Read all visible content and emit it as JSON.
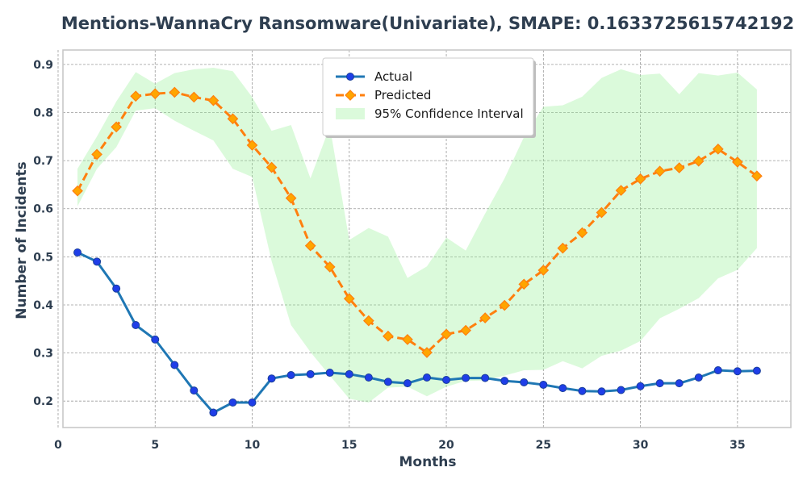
{
  "chart_data": {
    "type": "line",
    "title": "Mentions-WannaCry Ransomware(Univariate), SMAPE: 0.1633725615742192",
    "xlabel": "Months",
    "ylabel": "Number of Incidents",
    "xlim": [
      0.25,
      37.75
    ],
    "ylim": [
      0.145,
      0.93
    ],
    "xticks": [
      0,
      5,
      10,
      15,
      20,
      25,
      30,
      35
    ],
    "yticks": [
      0.2,
      0.3,
      0.4,
      0.5,
      0.6,
      0.7,
      0.8,
      0.9
    ],
    "grid": true,
    "legend_position": "top-center",
    "x": [
      1,
      2,
      3,
      4,
      5,
      6,
      7,
      8,
      9,
      10,
      11,
      12,
      13,
      14,
      15,
      16,
      17,
      18,
      19,
      20,
      21,
      22,
      23,
      24,
      25,
      26,
      27,
      28,
      29,
      30,
      31,
      32,
      33,
      34,
      35,
      36
    ],
    "series": [
      {
        "name": "Actual",
        "color": "#1f77b4",
        "marker_color": "#1f3ee8",
        "values": [
          0.509,
          0.49,
          0.434,
          0.358,
          0.328,
          0.275,
          0.222,
          0.176,
          0.197,
          0.197,
          0.247,
          0.254,
          0.256,
          0.259,
          0.256,
          0.249,
          0.24,
          0.237,
          0.249,
          0.244,
          0.248,
          0.248,
          0.242,
          0.239,
          0.234,
          0.227,
          0.221,
          0.22,
          0.223,
          0.231,
          0.237,
          0.237,
          0.249,
          0.264,
          0.262,
          0.263
        ]
      },
      {
        "name": "Predicted",
        "color": "#ff7f0e",
        "marker_color": "#ffa500",
        "values": [
          0.637,
          0.713,
          0.77,
          0.834,
          0.839,
          0.842,
          0.832,
          0.825,
          0.787,
          0.732,
          0.686,
          0.622,
          0.523,
          0.479,
          0.413,
          0.367,
          0.335,
          0.328,
          0.301,
          0.339,
          0.347,
          0.373,
          0.399,
          0.443,
          0.472,
          0.518,
          0.55,
          0.592,
          0.638,
          0.662,
          0.678,
          0.685,
          0.699,
          0.724,
          0.697,
          0.668
        ]
      }
    ],
    "confidence_interval": {
      "name": "95% Confidence Interval",
      "color": "#90ee90",
      "lower": [
        0.605,
        0.683,
        0.728,
        0.804,
        0.809,
        0.783,
        0.762,
        0.742,
        0.683,
        0.666,
        0.491,
        0.358,
        0.302,
        0.253,
        0.205,
        0.197,
        0.228,
        0.23,
        0.21,
        0.23,
        0.242,
        0.243,
        0.253,
        0.264,
        0.265,
        0.283,
        0.268,
        0.294,
        0.305,
        0.325,
        0.372,
        0.392,
        0.414,
        0.455,
        0.473,
        0.518
      ],
      "upper": [
        0.683,
        0.75,
        0.823,
        0.884,
        0.86,
        0.882,
        0.89,
        0.893,
        0.886,
        0.832,
        0.762,
        0.774,
        0.663,
        0.771,
        0.535,
        0.56,
        0.542,
        0.456,
        0.48,
        0.54,
        0.513,
        0.59,
        0.663,
        0.749,
        0.812,
        0.815,
        0.833,
        0.872,
        0.89,
        0.878,
        0.881,
        0.838,
        0.882,
        0.877,
        0.883,
        0.848
      ]
    }
  }
}
